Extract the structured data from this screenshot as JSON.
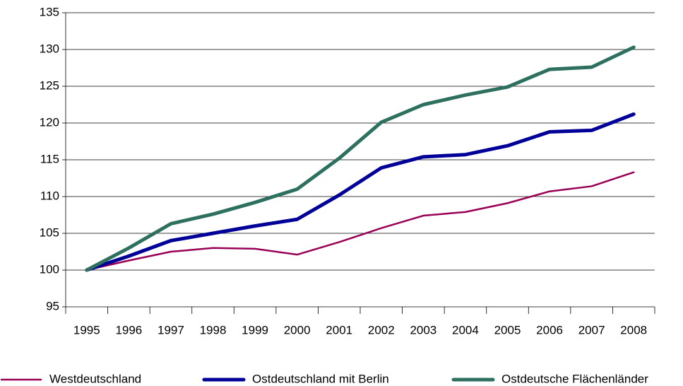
{
  "chart_data": {
    "type": "line",
    "categories": [
      "1995",
      "1996",
      "1997",
      "1998",
      "1999",
      "2000",
      "2001",
      "2002",
      "2003",
      "2004",
      "2005",
      "2006",
      "2007",
      "2008"
    ],
    "series": [
      {
        "name": "Westdeutschland",
        "color": "#990055",
        "width": 2.5,
        "values": [
          100,
          101.3,
          102.5,
          103,
          102.9,
          102.1,
          103.8,
          105.7,
          107.4,
          107.9,
          109.1,
          110.7,
          111.4,
          113.3
        ]
      },
      {
        "name": "Ostdeutschland mit Berlin",
        "color": "#000099",
        "width": 5,
        "values": [
          100,
          101.9,
          104,
          105,
          106,
          106.9,
          110.2,
          113.9,
          115.4,
          115.7,
          116.9,
          118.8,
          119,
          121.2
        ]
      },
      {
        "name": "Ostdeutsche Flächenländer",
        "color": "#2e7060",
        "width": 5,
        "values": [
          100,
          103,
          106.3,
          107.6,
          109.2,
          111,
          115.2,
          120.1,
          122.5,
          123.8,
          124.9,
          127.3,
          127.6,
          130.3
        ]
      }
    ],
    "ylim": [
      95,
      135
    ],
    "yticks": [
      95,
      100,
      105,
      110,
      115,
      120,
      125,
      130,
      135
    ],
    "grid": true,
    "legend": "bottom"
  }
}
